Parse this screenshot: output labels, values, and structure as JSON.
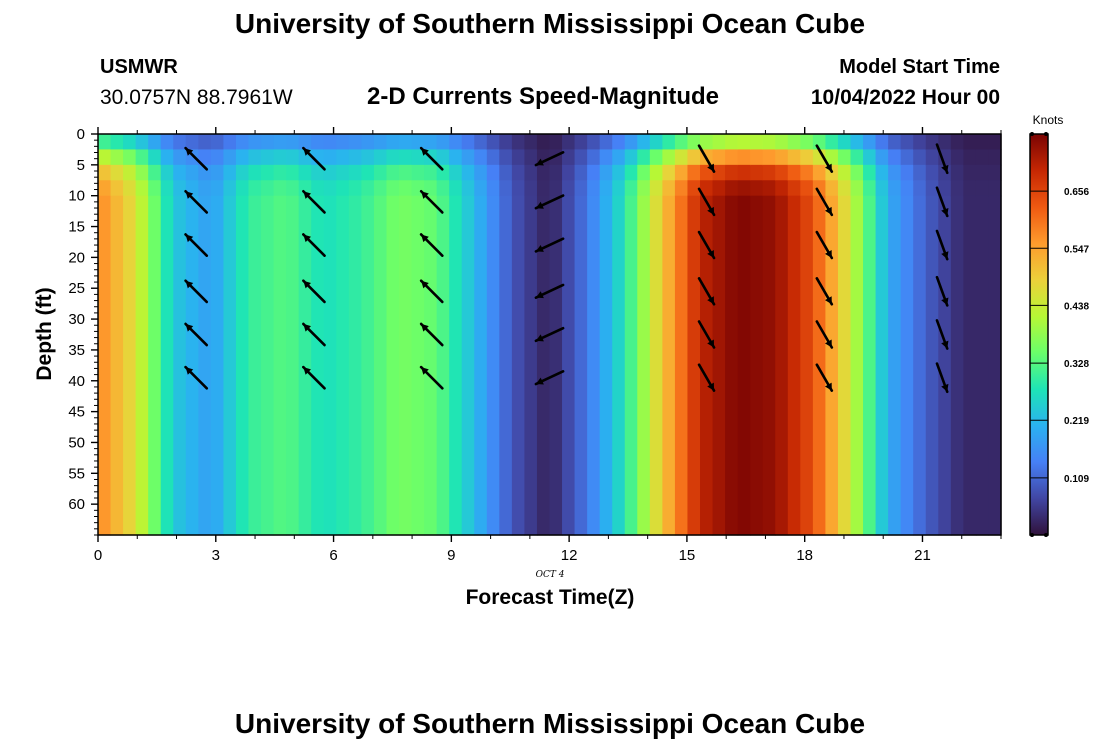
{
  "header": {
    "title": "University of Southern Mississippi Ocean Cube",
    "station": "USMWR",
    "coordinates": "30.0757N  88.7961W",
    "subtitle": "2-D Currents Speed-Magnitude",
    "start_label": "Model Start Time",
    "start_value": "10/04/2022 Hour 00",
    "bottom_title": "University of Southern Mississippi Ocean Cube"
  },
  "colors": {
    "arrow": "#000000",
    "colormap": [
      "#30123b",
      "#4146a3",
      "#4680f6",
      "#2ab2f0",
      "#1ee4b6",
      "#6afe6a",
      "#b7f735",
      "#ecd03a",
      "#fe9b2d",
      "#ef5911",
      "#c52703",
      "#7a0403"
    ]
  },
  "chart_data": {
    "type": "heatmap",
    "title": "2-D Currents Speed-Magnitude",
    "xlabel": "Forecast Time(Z)",
    "ylabel": "Depth (ft)",
    "date_label": "OCT 4",
    "xlim": [
      0,
      23
    ],
    "ylim": [
      65,
      0
    ],
    "y_inverted": true,
    "x_ticks": [
      0,
      3,
      6,
      9,
      12,
      15,
      18,
      21
    ],
    "y_ticks": [
      0,
      5,
      10,
      15,
      20,
      25,
      30,
      35,
      40,
      45,
      50,
      55,
      60
    ],
    "colorbar": {
      "label": "Knots",
      "min": 0.0,
      "max": 0.765,
      "ticks": [
        0.109,
        0.219,
        0.328,
        0.438,
        0.547,
        0.656
      ]
    },
    "speed_by_hour_knots": [
      0.58,
      0.46,
      0.24,
      0.18,
      0.3,
      0.33,
      0.27,
      0.3,
      0.36,
      0.34,
      0.22,
      0.09,
      0.02,
      0.13,
      0.28,
      0.5,
      0.7,
      0.76,
      0.74,
      0.64,
      0.44,
      0.2,
      0.1,
      0.03
    ],
    "vector_depths_ft": [
      4,
      11,
      18,
      25.5,
      32.5,
      39.5
    ],
    "vector_hours": [
      2.5,
      5.5,
      8.5,
      11.5,
      15.5,
      18.5,
      21.5
    ],
    "vector_directions_deg": [
      135,
      135,
      135,
      205,
      300,
      300,
      290
    ]
  }
}
